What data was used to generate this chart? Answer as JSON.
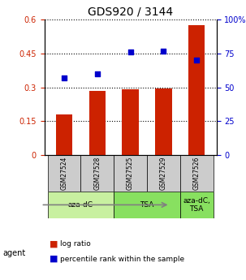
{
  "title": "GDS920 / 3144",
  "samples": [
    "GSM27524",
    "GSM27528",
    "GSM27525",
    "GSM27529",
    "GSM27526"
  ],
  "log_ratios": [
    0.18,
    0.285,
    0.29,
    0.295,
    0.575
  ],
  "percentile_ranks": [
    57,
    60,
    76,
    77,
    70
  ],
  "bar_color": "#cc2200",
  "dot_color": "#0000cc",
  "ylim_left": [
    0,
    0.6
  ],
  "ylim_right": [
    0,
    100
  ],
  "yticks_left": [
    0,
    0.15,
    0.3,
    0.45,
    0.6
  ],
  "yticks_right": [
    0,
    25,
    50,
    75,
    100
  ],
  "ytick_labels_left": [
    "0",
    "0.15",
    "0.3",
    "0.45",
    "0.6"
  ],
  "ytick_labels_right": [
    "0",
    "25",
    "50",
    "75",
    "100%"
  ],
  "agents": [
    {
      "label": "aza-dC",
      "start": 0,
      "end": 2,
      "color": "#c8f0a0"
    },
    {
      "label": "TSA",
      "start": 2,
      "end": 4,
      "color": "#88e060"
    },
    {
      "label": "aza-dC,\nTSA",
      "start": 4,
      "end": 5,
      "color": "#88e060"
    }
  ],
  "agent_row_label": "agent",
  "legend_red_label": "log ratio",
  "legend_blue_label": "percentile rank within the sample",
  "bar_width": 0.5,
  "sample_box_color": "#cccccc",
  "sample_box_text_color": "#000000"
}
